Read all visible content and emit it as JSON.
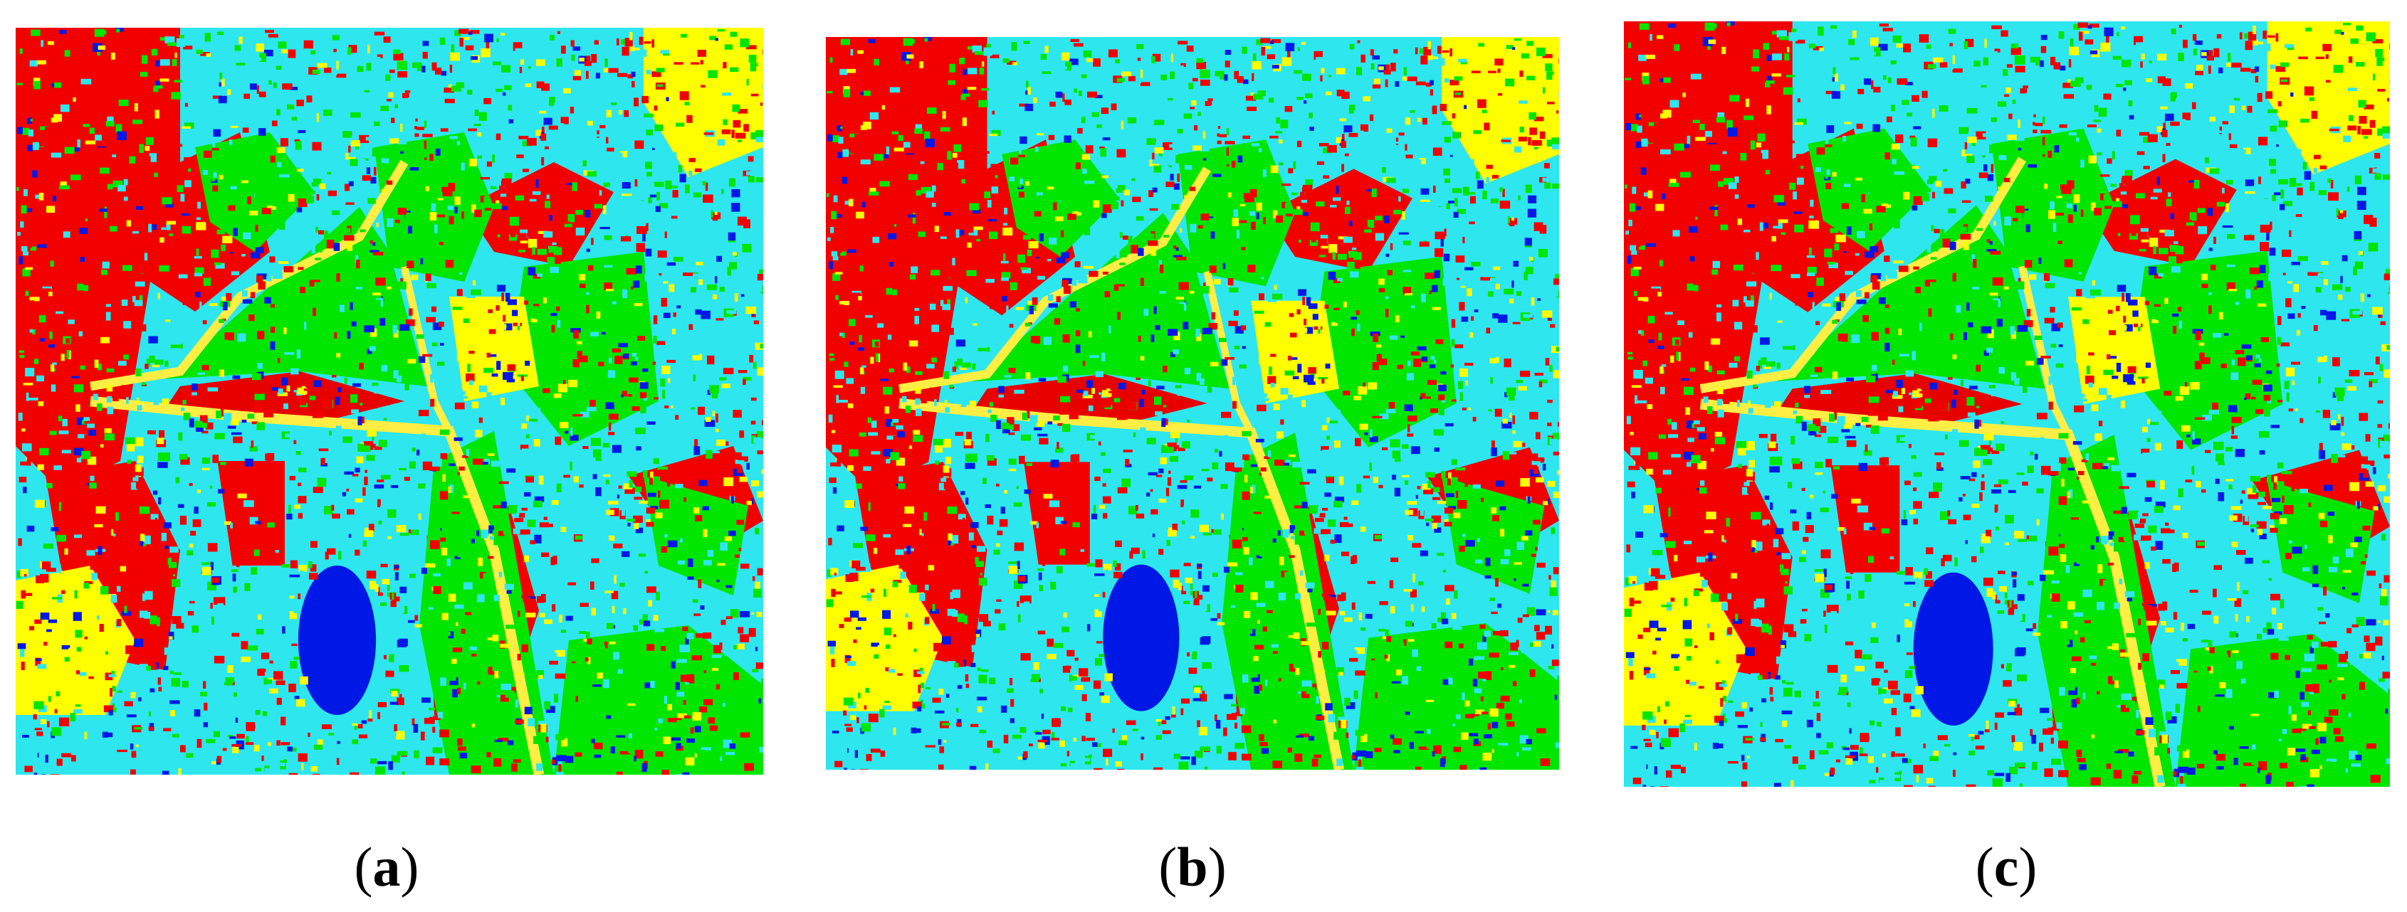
{
  "panels": [
    {
      "open": "(",
      "letter": "a",
      "close": ")"
    },
    {
      "open": "(",
      "letter": "b",
      "close": ")"
    },
    {
      "open": "(",
      "letter": "c",
      "close": ")"
    }
  ]
}
